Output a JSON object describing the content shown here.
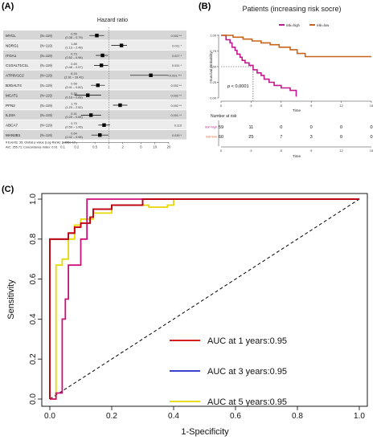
{
  "panels": {
    "a": "(A)",
    "b": "(B)",
    "c": "(C)"
  },
  "chart_data": [
    {
      "type": "forest",
      "title": "Hazard ratio",
      "x_ticks": [
        "0.1",
        "0.2",
        "0.5",
        "1",
        "2",
        "5",
        "10",
        "20"
      ],
      "x_tick_values": [
        0.1,
        0.2,
        0.5,
        1,
        2,
        5,
        10,
        20
      ],
      "log_scale": true,
      "reference_line": 1,
      "rows": [
        {
          "gene": "MYCL",
          "n": "(N=119)",
          "hr": 0.55,
          "lo": 0.38,
          "hi": 0.79,
          "ci": "0.55\n(0.38 – 0.79)",
          "p": "0.002 **"
        },
        {
          "gene": "NDRG1",
          "n": "(N=119)",
          "hr": 1.88,
          "lo": 1.13,
          "hi": 2.48,
          "ci": "1.88\n(1.13 – 2.48)",
          "p": "0.011 *"
        },
        {
          "gene": "ITGA1",
          "n": "(N=119)",
          "hr": 0.73,
          "lo": 0.52,
          "hi": 0.96,
          "ci": "0.73\n(0.52 – 0.96)",
          "p": "0.027 *"
        },
        {
          "gene": "C1GALT1C1L",
          "n": "(N=119)",
          "hr": 0.69,
          "lo": 0.48,
          "hi": 0.97,
          "ci": "0.69\n(0.48 – 0.97)",
          "p": "0.031 *"
        },
        {
          "gene": "ATP6V1C2",
          "n": "(N=119)",
          "hr": 8.15,
          "lo": 2.91,
          "hi": 19.42,
          "ci": "8.15\n(2.91 – 19.42)",
          "p": "<0.001 ***"
        },
        {
          "gene": "B3GALT4",
          "n": "(N=119)",
          "hr": 0.58,
          "lo": 0.41,
          "hi": 0.82,
          "ci": "0.58\n(0.41 – 0.82)",
          "p": "0.002 **"
        },
        {
          "gene": "MCAT1",
          "n": "(N=119)",
          "hr": 0.35,
          "lo": 0.18,
          "hi": 0.68,
          "ci": "0.35\n(0.18 – 0.68)",
          "p": "0.002 **"
        },
        {
          "gene": "PFN2",
          "n": "(N=119)",
          "hr": 1.76,
          "lo": 1.23,
          "hi": 2.52,
          "ci": "1.76\n(1.23 – 2.52)",
          "p": "0.002 **"
        },
        {
          "gene": "IL23A",
          "n": "(N=119)",
          "hr": 0.41,
          "lo": 0.25,
          "hi": 0.68,
          "ci": "0.41\n(0.25 – 0.68)",
          "p": "0.001 **"
        },
        {
          "gene": "ABCA7",
          "n": "(N=119)",
          "hr": 0.79,
          "lo": 0.59,
          "hi": 1.06,
          "ci": "0.79\n(0.59 – 1.06)",
          "p": "0.119"
        },
        {
          "gene": "MAN2B1",
          "n": "(N=119)",
          "hr": 0.64,
          "lo": 0.42,
          "hi": 0.98,
          "ci": "0.64\n(0.42 – 0.98)",
          "p": "0.039 *"
        }
      ],
      "footnote": [
        "# Events: 39; Global p-value (Log-Rank): 2.386e-10",
        "AIC: 255.71; Concordance Index: 0.91"
      ]
    },
    {
      "type": "line",
      "title": "Patients (increasing risk socre)",
      "xlabel": "Time",
      "ylabel": "Survival probability",
      "xlim": [
        0,
        15
      ],
      "ylim": [
        0,
        1
      ],
      "x_ticks": [
        0,
        3,
        6,
        9,
        12,
        15
      ],
      "y_ticks": [
        0,
        0.25,
        0.5,
        0.75,
        1
      ],
      "y_tick_labels": [
        "0.00",
        "0.25",
        "0.50",
        "0.75",
        "1.00"
      ],
      "legend": [
        "risk=high",
        "risk=low"
      ],
      "colors": [
        "#c0188e",
        "#c8641a"
      ],
      "annotation": "p < 0.0001",
      "median_line": {
        "x": 3.2,
        "y": 0.5
      },
      "series": [
        {
          "name": "risk=high",
          "x": [
            0,
            0.5,
            0.5,
            0.9,
            0.9,
            1.1,
            1.1,
            1.4,
            1.4,
            1.6,
            1.6,
            1.9,
            1.9,
            2.1,
            2.1,
            2.4,
            2.4,
            2.8,
            2.8,
            3.2,
            3.2,
            3.6,
            3.6,
            4.0,
            4.0,
            4.3,
            4.3,
            4.8,
            4.8,
            5.3,
            5.3,
            6.0,
            6.0,
            6.9,
            6.9,
            7.5,
            7.5
          ],
          "y": [
            1,
            1,
            0.93,
            0.93,
            0.88,
            0.88,
            0.81,
            0.81,
            0.76,
            0.76,
            0.7,
            0.7,
            0.65,
            0.65,
            0.6,
            0.6,
            0.56,
            0.56,
            0.52,
            0.52,
            0.45,
            0.45,
            0.4,
            0.4,
            0.36,
            0.36,
            0.3,
            0.3,
            0.25,
            0.25,
            0.2,
            0.2,
            0.16,
            0.16,
            0.12,
            0.12,
            0.02
          ]
        },
        {
          "name": "risk=low",
          "x": [
            0,
            1.2,
            1.2,
            2.2,
            2.2,
            3.1,
            3.1,
            4.0,
            4.0,
            4.9,
            4.9,
            5.8,
            5.8,
            6.9,
            6.9,
            7.6,
            7.6,
            8.4,
            8.4,
            15
          ],
          "y": [
            1,
            1,
            0.97,
            0.97,
            0.94,
            0.94,
            0.91,
            0.91,
            0.88,
            0.88,
            0.85,
            0.85,
            0.81,
            0.81,
            0.77,
            0.77,
            0.71,
            0.71,
            0.66,
            0.66
          ]
        }
      ]
    },
    {
      "type": "table",
      "title": "Number at risk",
      "xlabel": "Time",
      "x_ticks": [
        0,
        3,
        6,
        9,
        12,
        15
      ],
      "rows": [
        {
          "name": "risk=high",
          "color": "#c0188e",
          "values": [
            "59",
            "11",
            "0",
            "0",
            "0",
            "0"
          ]
        },
        {
          "name": "risk=low",
          "color": "#c8641a",
          "values": [
            "60",
            "25",
            "7",
            "3",
            "0",
            "0"
          ]
        }
      ]
    },
    {
      "type": "line",
      "xlabel": "1-Specificity",
      "ylabel": "Sensitivity",
      "xlim": [
        0,
        1
      ],
      "ylim": [
        0,
        1
      ],
      "x_ticks": [
        0,
        0.2,
        0.4,
        0.6,
        0.8,
        1
      ],
      "x_tick_labels": [
        "0.0",
        "0.2",
        "0.4",
        "0.6",
        "0.8",
        "1.0"
      ],
      "y_ticks": [
        0,
        0.2,
        0.4,
        0.6,
        0.8,
        1
      ],
      "y_tick_labels": [
        "0.0",
        "0.2",
        "0.4",
        "0.6",
        "0.8",
        "1.0"
      ],
      "legend_position": "bottom-right",
      "series": [
        {
          "name": "AUC at 1 years:0.95",
          "color": "#cc0000",
          "x": [
            0,
            0,
            0.015,
            0.015,
            0.06,
            0.06,
            0.08,
            0.08,
            0.1,
            0.1,
            0.13,
            0.13,
            0.14,
            0.14,
            0.2,
            0.2,
            0.3,
            0.3,
            1.0
          ],
          "y": [
            0,
            0.8,
            0.8,
            0.8,
            0.8,
            0.83,
            0.83,
            0.86,
            0.86,
            0.88,
            0.88,
            0.91,
            0.91,
            0.95,
            0.95,
            0.97,
            0.97,
            1.0,
            1.0
          ]
        },
        {
          "name": "AUC at 3 years:0.95",
          "color": "#2222cc",
          "x": [
            0,
            0,
            0.015,
            0.015,
            0.06,
            0.06,
            0.08,
            0.08,
            0.1,
            0.1,
            0.13,
            0.13,
            0.14,
            0.14,
            0.2,
            0.2,
            0.3,
            0.3,
            1.0
          ],
          "y": [
            0,
            0.8,
            0.8,
            0.8,
            0.8,
            0.83,
            0.83,
            0.86,
            0.86,
            0.88,
            0.88,
            0.91,
            0.91,
            0.95,
            0.95,
            0.97,
            0.97,
            1.0,
            1.0
          ]
        },
        {
          "name": "AUC at 5 years:0.95",
          "color": "#e6d800",
          "x": [
            0,
            0.02,
            0.02,
            0.04,
            0.04,
            0.06,
            0.06,
            0.08,
            0.08,
            0.1,
            0.1,
            0.14,
            0.14,
            0.2,
            0.2,
            0.32,
            0.32,
            0.38,
            0.38,
            0.4,
            0.4,
            1.0
          ],
          "y": [
            0,
            0,
            0.67,
            0.67,
            0.7,
            0.7,
            0.8,
            0.8,
            0.87,
            0.87,
            0.9,
            0.9,
            0.93,
            0.93,
            0.97,
            0.97,
            0.96,
            0.96,
            0.97,
            0.97,
            1.0,
            1.0
          ]
        },
        {
          "name": "",
          "color": "#cc1177",
          "x": [
            0,
            0.02,
            0.02,
            0.04,
            0.04,
            0.05,
            0.05,
            0.06,
            0.06,
            0.1,
            0.1,
            0.12,
            0.12,
            0.4,
            0.4,
            1.0
          ],
          "y": [
            0,
            0,
            0.03,
            0.03,
            0.4,
            0.4,
            0.5,
            0.5,
            0.67,
            0.67,
            0.8,
            0.8,
            1.0,
            1.0,
            1.0,
            1.0
          ]
        }
      ],
      "diagonal": true
    }
  ]
}
